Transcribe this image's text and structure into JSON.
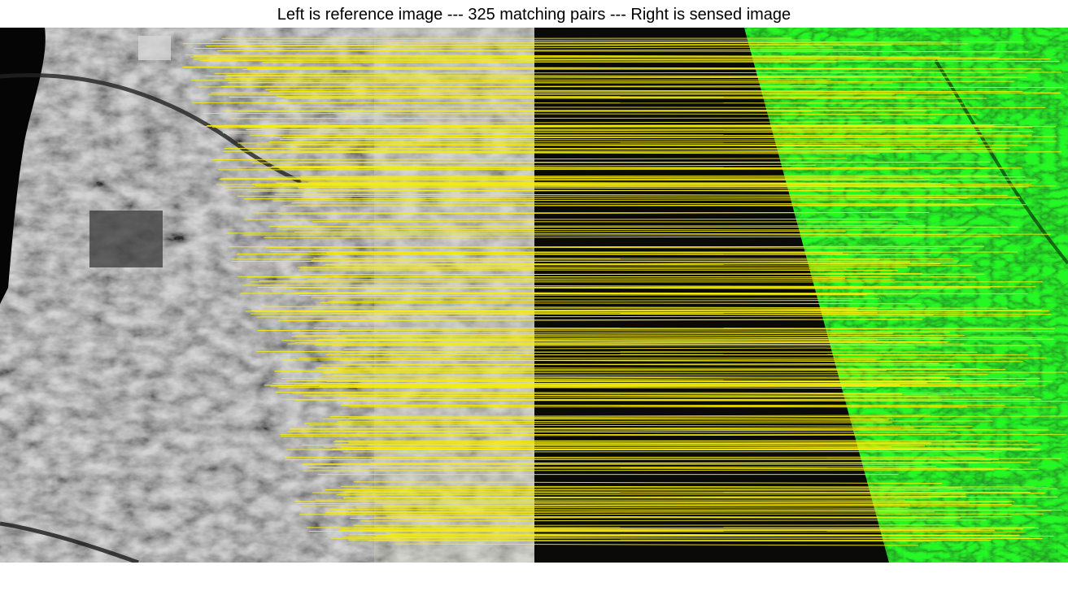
{
  "figure": {
    "title": "Left is reference image --- 325 matching pairs --- Right is sensed image",
    "left_image": "reference image (grayscale aerial photo)",
    "right_image": "sensed image (green-tinted rotated aerial image)",
    "match_count": 325
  },
  "colors": {
    "match_line": "#f4ec10",
    "sensed_tint": "#1ee61e",
    "background_black": "#0a0a08",
    "page_bg": "#ffffff"
  }
}
